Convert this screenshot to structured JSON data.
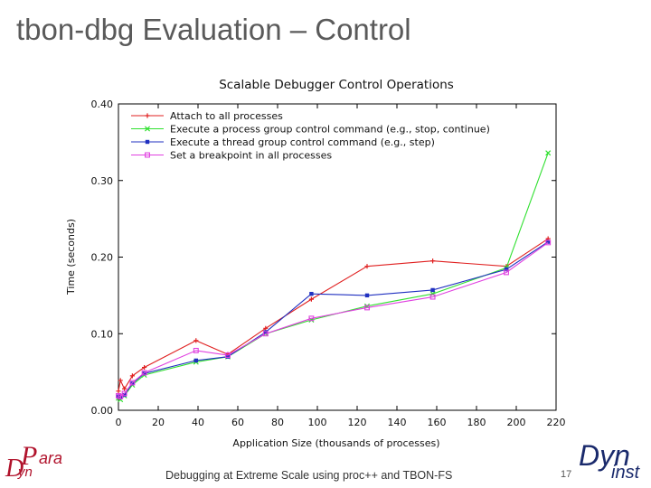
{
  "slide": {
    "title": "tbon-dbg Evaluation – Control",
    "footer": "Debugging at Extreme Scale using proc++ and TBON-FS",
    "page_number": "17",
    "logo_left": {
      "p1": "P",
      "p2": "ara",
      "d1": "D",
      "d2": "yn"
    },
    "logo_right": {
      "dyn": "Dyn",
      "inst": "inst"
    }
  },
  "chart_data": {
    "type": "line",
    "title": "Scalable Debugger Control Operations",
    "xlabel": "Application Size (thousands of processes)",
    "ylabel": "Time (seconds)",
    "xlim": [
      0,
      220
    ],
    "ylim": [
      0,
      0.4
    ],
    "xticks": [
      "0",
      "20",
      "40",
      "60",
      "80",
      "100",
      "120",
      "140",
      "160",
      "180",
      "200",
      "220"
    ],
    "yticks": [
      "0.00",
      "0.10",
      "0.20",
      "0.30",
      "0.40"
    ],
    "legend_position": "top-left",
    "grid": false,
    "series": [
      {
        "name": "Attach to all processes",
        "color": "#e02020",
        "marker": "plus",
        "x": [
          0,
          1,
          3,
          7,
          13,
          39,
          55,
          74,
          97,
          125,
          158,
          195,
          216
        ],
        "y": [
          0.025,
          0.039,
          0.028,
          0.045,
          0.056,
          0.091,
          0.073,
          0.107,
          0.145,
          0.188,
          0.195,
          0.188,
          0.224
        ]
      },
      {
        "name": "Execute a process group control command (e.g., stop, continue)",
        "color": "#30e030",
        "marker": "x",
        "x": [
          0,
          1,
          3,
          7,
          13,
          39,
          55,
          74,
          97,
          125,
          158,
          195,
          216
        ],
        "y": [
          0.016,
          0.014,
          0.019,
          0.033,
          0.046,
          0.063,
          0.07,
          0.1,
          0.118,
          0.136,
          0.152,
          0.186,
          0.336
        ]
      },
      {
        "name": "Execute a thread group control command (e.g., step)",
        "color": "#2030c0",
        "marker": "filled-square",
        "x": [
          0,
          1,
          3,
          7,
          13,
          39,
          55,
          74,
          97,
          125,
          158,
          195,
          216
        ],
        "y": [
          0.018,
          0.017,
          0.02,
          0.035,
          0.048,
          0.065,
          0.07,
          0.102,
          0.152,
          0.15,
          0.157,
          0.184,
          0.22
        ]
      },
      {
        "name": "Set a breakpoint in all processes",
        "color": "#e040e0",
        "marker": "square",
        "x": [
          0,
          1,
          3,
          7,
          13,
          39,
          55,
          74,
          97,
          125,
          158,
          195,
          216
        ],
        "y": [
          0.019,
          0.018,
          0.022,
          0.036,
          0.049,
          0.078,
          0.072,
          0.1,
          0.12,
          0.134,
          0.148,
          0.18,
          0.219
        ]
      }
    ]
  }
}
